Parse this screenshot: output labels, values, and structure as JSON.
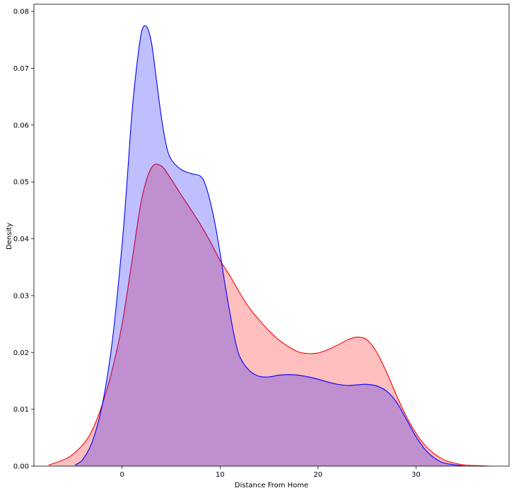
{
  "chart_data": {
    "type": "area",
    "xlabel": "Distance From Home",
    "ylabel": "Density",
    "xlim": [
      -9.0,
      39.5
    ],
    "ylim": [
      0,
      0.08125
    ],
    "xticks": [
      0,
      10,
      20,
      30
    ],
    "xtick_labels": [
      "0",
      "10",
      "20",
      "30"
    ],
    "yticks": [
      0.0,
      0.01,
      0.02,
      0.03,
      0.04,
      0.05,
      0.06,
      0.07,
      0.08
    ],
    "ytick_labels": [
      "0.00",
      "0.01",
      "0.02",
      "0.03",
      "0.04",
      "0.05",
      "0.06",
      "0.07",
      "0.08"
    ],
    "grid": false,
    "series": [
      {
        "color": "#ff0000",
        "fill": "#ff0000",
        "fill_opacity": 0.25,
        "x": [
          -7.5,
          -5.5,
          -4.0,
          -3.0,
          -2.0,
          -1.0,
          0.0,
          1.0,
          2.0,
          3.0,
          4.0,
          5.0,
          6.0,
          7.0,
          8.0,
          9.0,
          10.0,
          11.0,
          12.0,
          13.0,
          14.0,
          15.0,
          16.0,
          17.0,
          18.0,
          19.0,
          20.0,
          21.0,
          22.0,
          23.0,
          24.0,
          25.0,
          26.0,
          27.0,
          28.0,
          29.0,
          30.0,
          31.0,
          32.0,
          33.0,
          34.0,
          35.0,
          36.0,
          37.5
        ],
        "y": [
          0.0002,
          0.0015,
          0.0038,
          0.0065,
          0.011,
          0.017,
          0.025,
          0.036,
          0.047,
          0.0525,
          0.0528,
          0.0505,
          0.0478,
          0.0452,
          0.0425,
          0.0395,
          0.0362,
          0.0335,
          0.0305,
          0.0278,
          0.0257,
          0.0238,
          0.0222,
          0.021,
          0.0201,
          0.0198,
          0.0199,
          0.0205,
          0.0213,
          0.0222,
          0.0227,
          0.0222,
          0.02,
          0.0165,
          0.0125,
          0.0088,
          0.0058,
          0.0035,
          0.002,
          0.001,
          0.0005,
          0.0002,
          0.0001,
          0.0
        ]
      },
      {
        "color": "#0000ff",
        "fill": "#0000ff",
        "fill_opacity": 0.25,
        "x": [
          -4.8,
          -4.0,
          -3.0,
          -2.0,
          -1.0,
          0.0,
          0.5,
          1.0,
          1.5,
          2.0,
          2.5,
          3.0,
          3.5,
          4.0,
          4.5,
          5.0,
          6.0,
          7.0,
          8.0,
          8.5,
          9.0,
          9.5,
          10.0,
          10.5,
          11.0,
          11.5,
          12.0,
          13.0,
          14.0,
          15.0,
          16.0,
          17.0,
          18.0,
          19.0,
          20.0,
          21.0,
          22.0,
          23.0,
          24.0,
          25.0,
          26.0,
          27.0,
          28.0,
          29.0,
          30.0,
          31.0,
          32.0,
          33.0,
          35.0
        ],
        "y": [
          0.0002,
          0.0012,
          0.0045,
          0.011,
          0.022,
          0.039,
          0.05,
          0.062,
          0.0705,
          0.0765,
          0.0773,
          0.0745,
          0.068,
          0.0615,
          0.0565,
          0.054,
          0.0522,
          0.0515,
          0.051,
          0.0495,
          0.0465,
          0.0425,
          0.0375,
          0.032,
          0.027,
          0.0225,
          0.0193,
          0.0168,
          0.0158,
          0.0157,
          0.016,
          0.0161,
          0.016,
          0.0157,
          0.0153,
          0.0148,
          0.0144,
          0.0142,
          0.0143,
          0.0144,
          0.0141,
          0.0132,
          0.0113,
          0.0083,
          0.0052,
          0.0028,
          0.0013,
          0.0005,
          0.0
        ]
      }
    ]
  }
}
